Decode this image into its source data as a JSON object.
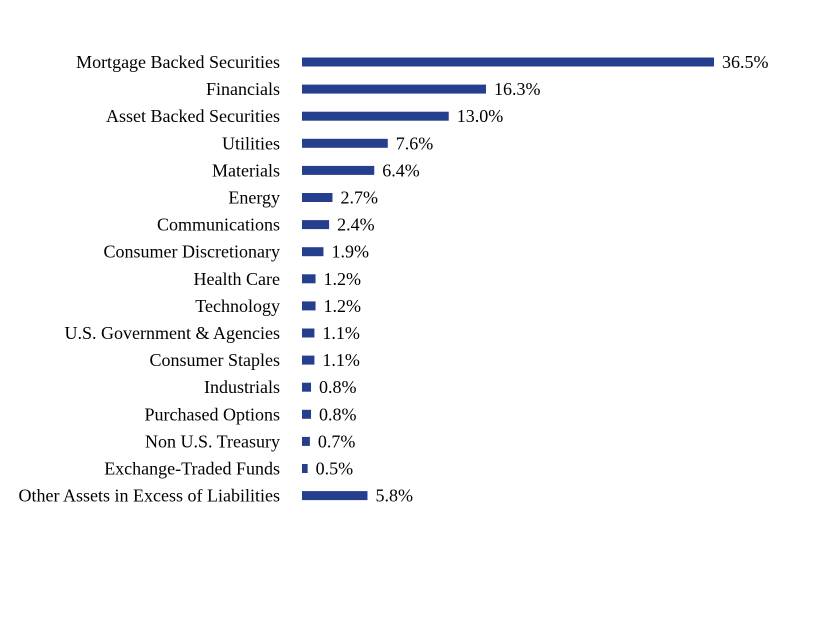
{
  "chart_data": {
    "type": "bar",
    "orientation": "horizontal",
    "title": "",
    "xlabel": "",
    "ylabel": "",
    "xlim": [
      0,
      36.5
    ],
    "grid": false,
    "bar_color": "#253F8E",
    "categories": [
      "Mortgage Backed Securities",
      "Financials",
      "Asset Backed Securities",
      "Utilities",
      "Materials",
      "Energy",
      "Communications",
      "Consumer Discretionary",
      "Health Care",
      "Technology",
      "U.S. Government & Agencies",
      "Consumer Staples",
      "Industrials",
      "Purchased Options",
      "Non U.S. Treasury",
      "Exchange-Traded Funds",
      "Other Assets in Excess of Liabilities"
    ],
    "values": [
      36.5,
      16.3,
      13.0,
      7.6,
      6.4,
      2.7,
      2.4,
      1.9,
      1.2,
      1.2,
      1.1,
      1.1,
      0.8,
      0.8,
      0.7,
      0.5,
      5.8
    ],
    "value_labels": [
      "36.5%",
      "16.3%",
      "13.0%",
      "7.6%",
      "6.4%",
      "2.7%",
      "2.4%",
      "1.9%",
      "1.2%",
      "1.2%",
      "1.1%",
      "1.1%",
      "0.8%",
      "0.8%",
      "0.7%",
      "0.5%",
      "5.8%"
    ]
  }
}
